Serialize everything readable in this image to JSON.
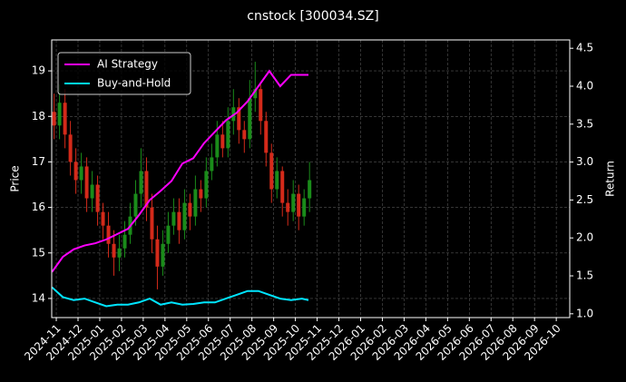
{
  "chart_data": {
    "type": "candlestick",
    "title": "cnstock [300034.SZ]",
    "ylabel": "Price",
    "y2label": "Return",
    "xlim": [
      -0.21,
      23.62
    ],
    "xticks": [
      {
        "value": 0,
        "label": "2024-11"
      },
      {
        "value": 1,
        "label": "2024-12"
      },
      {
        "value": 2,
        "label": "2025-01"
      },
      {
        "value": 3,
        "label": "2025-02"
      },
      {
        "value": 4,
        "label": "2025-03"
      },
      {
        "value": 5,
        "label": "2025-04"
      },
      {
        "value": 6,
        "label": "2025-05"
      },
      {
        "value": 7,
        "label": "2025-06"
      },
      {
        "value": 8,
        "label": "2025-07"
      },
      {
        "value": 9,
        "label": "2025-08"
      },
      {
        "value": 10,
        "label": "2025-09"
      },
      {
        "value": 11,
        "label": "2025-10"
      },
      {
        "value": 12,
        "label": "2025-11"
      },
      {
        "value": 13,
        "label": "2025-12"
      },
      {
        "value": 14,
        "label": "2026-01"
      },
      {
        "value": 15,
        "label": "2026-02"
      },
      {
        "value": 16,
        "label": "2026-03"
      },
      {
        "value": 17,
        "label": "2026-04"
      },
      {
        "value": 18,
        "label": "2026-05"
      },
      {
        "value": 19,
        "label": "2026-06"
      },
      {
        "value": 20,
        "label": "2026-07"
      },
      {
        "value": 21,
        "label": "2026-08"
      },
      {
        "value": 22,
        "label": "2026-09"
      },
      {
        "value": 23,
        "label": "2026-10"
      }
    ],
    "ylim": [
      13.58,
      19.68
    ],
    "yticks": [
      14,
      15,
      16,
      17,
      18,
      19
    ],
    "y2lim": [
      0.95,
      4.61
    ],
    "y2ticks": [
      {
        "value": 1.0,
        "label": "1.0"
      },
      {
        "value": 1.5,
        "label": "1.5"
      },
      {
        "value": 2.0,
        "label": "2.0"
      },
      {
        "value": 2.5,
        "label": "2.5"
      },
      {
        "value": 3.0,
        "label": "3.0"
      },
      {
        "value": 3.5,
        "label": "3.5"
      },
      {
        "value": 4.0,
        "label": "4.0"
      },
      {
        "value": 4.5,
        "label": "4.5"
      }
    ],
    "grid": true,
    "legend": "upper left",
    "up_color": "#1a8c1a",
    "down_color": "#d42a1a",
    "x": [
      -0.1,
      0.15,
      0.4,
      0.65,
      0.9,
      1.15,
      1.4,
      1.65,
      1.9,
      2.15,
      2.4,
      2.65,
      2.9,
      3.15,
      3.4,
      3.65,
      3.9,
      4.15,
      4.4,
      4.65,
      4.9,
      5.15,
      5.4,
      5.65,
      5.9,
      6.15,
      6.4,
      6.65,
      6.9,
      7.15,
      7.4,
      7.65,
      7.9,
      8.15,
      8.4,
      8.65,
      8.9,
      9.15,
      9.4,
      9.65,
      9.9,
      10.15,
      10.4,
      10.65,
      10.9,
      11.15,
      11.4,
      11.65
    ],
    "open": [
      18.1,
      17.8,
      18.3,
      17.6,
      17.0,
      16.6,
      16.9,
      16.2,
      16.5,
      15.9,
      15.6,
      15.2,
      14.9,
      15.1,
      15.4,
      15.8,
      16.3,
      16.8,
      16.0,
      15.3,
      14.7,
      15.2,
      15.6,
      15.9,
      15.5,
      16.1,
      15.8,
      16.4,
      16.2,
      16.8,
      17.1,
      17.6,
      17.3,
      17.9,
      18.2,
      17.7,
      17.5,
      18.4,
      18.6,
      17.9,
      17.2,
      16.4,
      16.8,
      16.1,
      15.9,
      16.3,
      15.8,
      16.2
    ],
    "close": [
      17.8,
      18.3,
      17.6,
      17.0,
      16.6,
      16.9,
      16.2,
      16.5,
      15.9,
      15.6,
      15.2,
      14.9,
      15.1,
      15.4,
      15.8,
      16.3,
      16.8,
      16.0,
      15.3,
      14.7,
      15.2,
      15.6,
      15.9,
      15.5,
      16.1,
      15.8,
      16.4,
      16.2,
      16.8,
      17.1,
      17.6,
      17.3,
      17.9,
      18.2,
      17.7,
      17.5,
      18.4,
      18.6,
      17.9,
      17.2,
      16.4,
      16.8,
      16.1,
      15.9,
      16.3,
      15.8,
      16.2,
      16.6
    ],
    "high": [
      18.5,
      18.7,
      18.6,
      17.9,
      17.3,
      17.2,
      17.1,
      16.8,
      16.7,
      16.1,
      15.9,
      15.5,
      15.4,
      15.7,
      16.1,
      16.6,
      17.3,
      17.1,
      16.3,
      15.6,
      15.5,
      15.9,
      16.2,
      16.2,
      16.4,
      16.3,
      16.7,
      16.6,
      17.1,
      17.4,
      17.9,
      17.9,
      18.2,
      18.6,
      18.4,
      17.9,
      18.8,
      19.2,
      18.7,
      18.1,
      17.4,
      17.1,
      16.9,
      16.4,
      16.6,
      16.5,
      16.4,
      17.0
    ],
    "low": [
      17.5,
      17.5,
      17.3,
      16.7,
      16.3,
      16.3,
      15.9,
      15.9,
      15.6,
      15.3,
      14.9,
      14.5,
      14.6,
      14.9,
      15.2,
      15.6,
      16.0,
      15.7,
      15.0,
      14.2,
      14.5,
      15.0,
      15.4,
      15.2,
      15.3,
      15.5,
      15.6,
      15.9,
      16.0,
      16.6,
      16.9,
      17.1,
      17.1,
      17.6,
      17.4,
      17.2,
      17.3,
      18.1,
      17.6,
      16.9,
      16.1,
      16.2,
      15.8,
      15.6,
      15.7,
      15.5,
      15.6,
      15.9
    ],
    "series": [
      {
        "name": "AI Strategy",
        "color": "#ff00ff",
        "axis": "y2",
        "x": [
          -0.2,
          0.3,
          0.8,
          1.3,
          1.8,
          2.3,
          2.8,
          3.3,
          3.8,
          4.3,
          4.8,
          5.3,
          5.8,
          6.3,
          6.8,
          7.3,
          7.8,
          8.3,
          8.8,
          9.3,
          9.8,
          10.3,
          10.8,
          11.3,
          11.6
        ],
        "values": [
          1.55,
          1.75,
          1.85,
          1.9,
          1.93,
          1.98,
          2.05,
          2.12,
          2.3,
          2.5,
          2.62,
          2.75,
          2.98,
          3.05,
          3.25,
          3.4,
          3.55,
          3.65,
          3.8,
          4.0,
          4.2,
          4.0,
          4.15,
          4.15,
          4.15
        ]
      },
      {
        "name": "Buy-and-Hold",
        "color": "#00e5ff",
        "axis": "y2",
        "x": [
          -0.2,
          0.3,
          0.8,
          1.3,
          1.8,
          2.3,
          2.8,
          3.3,
          3.8,
          4.3,
          4.8,
          5.3,
          5.8,
          6.3,
          6.8,
          7.3,
          7.8,
          8.3,
          8.8,
          9.3,
          9.8,
          10.3,
          10.8,
          11.3,
          11.6
        ],
        "values": [
          1.35,
          1.22,
          1.18,
          1.2,
          1.15,
          1.1,
          1.12,
          1.12,
          1.15,
          1.2,
          1.12,
          1.15,
          1.12,
          1.13,
          1.15,
          1.15,
          1.2,
          1.25,
          1.3,
          1.3,
          1.25,
          1.2,
          1.18,
          1.2,
          1.18
        ]
      }
    ]
  }
}
